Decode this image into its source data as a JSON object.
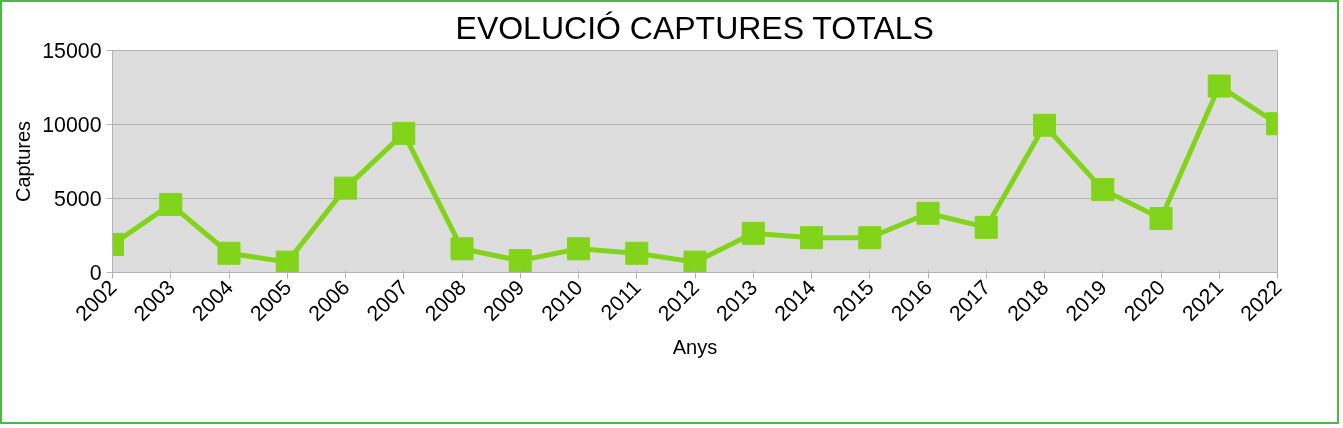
{
  "chart_data": {
    "type": "line",
    "title": "EVOLUCIÓ CAPTURES TOTALS",
    "xlabel": "Anys",
    "ylabel": "Captures",
    "categories": [
      "2002",
      "2003",
      "2004",
      "2005",
      "2006",
      "2007",
      "2008",
      "2009",
      "2010",
      "2011",
      "2012",
      "2013",
      "2014",
      "2015",
      "2016",
      "2017",
      "2018",
      "2019",
      "2020",
      "2021",
      "2022"
    ],
    "series": [
      {
        "color": "#81d41a",
        "values": [
          1900,
          4600,
          1300,
          700,
          5700,
          9400,
          1600,
          800,
          1600,
          1300,
          700,
          2650,
          2350,
          2350,
          4000,
          3050,
          9950,
          5600,
          3650,
          12600,
          10050
        ]
      }
    ],
    "ylim": [
      0,
      15000
    ],
    "yticks": [
      0,
      5000,
      10000,
      15000
    ],
    "grid": "y",
    "marker": "square",
    "line_style": "solid"
  }
}
